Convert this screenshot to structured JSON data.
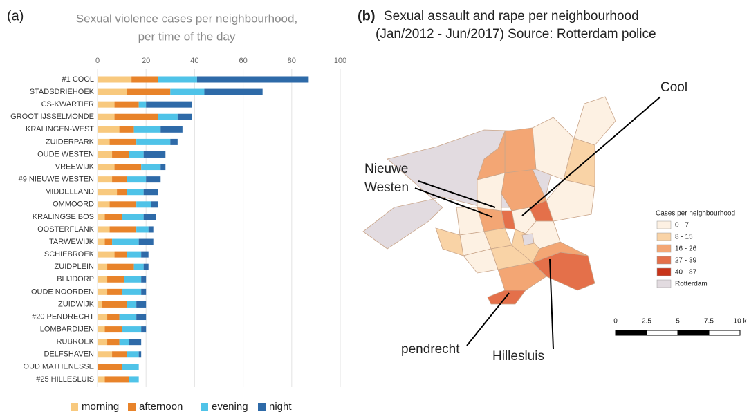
{
  "panels": [
    "(a)",
    "(b)"
  ],
  "chart_data": [
    {
      "type": "stacked-bar-horizontal",
      "title": [
        "Sexual violence cases per neighbourhood,",
        "per time of the day"
      ],
      "categories": [
        "#1 COOL",
        "STADSDRIEHOEK",
        "CS-KWARTIER",
        "GROOT IJSSELMONDE",
        "KRALINGEN-WEST",
        "ZUIDERPARK",
        "OUDE WESTEN",
        "VREEWIJK",
        "#9 NIEUWE WESTEN",
        "MIDDELLAND",
        "OMMOORD",
        "KRALINGSE BOS",
        "OOSTERFLANK",
        "TARWEWIJK",
        "SCHIEBROEK",
        "ZUIDPLEIN",
        "BLIJDORP",
        "OUDE NOORDEN",
        "ZUIDWIJK",
        "#20 PENDRECHT",
        "LOMBARDIJEN",
        "RUBROEK",
        "DELFSHAVEN",
        "OUD MATHENESSE",
        "#25 HILLESLUIS"
      ],
      "series": [
        {
          "name": "morning",
          "color": "#f8c97e",
          "values": [
            14,
            12,
            7,
            7,
            9,
            5,
            6,
            7,
            6,
            8,
            5,
            3,
            5,
            3,
            7,
            4,
            4,
            4,
            2,
            4,
            3,
            4,
            6,
            0,
            3
          ]
        },
        {
          "name": "afternoon",
          "color": "#e8832a",
          "values": [
            11,
            18,
            10,
            18,
            6,
            11,
            7,
            11,
            6,
            4,
            11,
            7,
            11,
            3,
            5,
            11,
            7,
            6,
            10,
            5,
            7,
            5,
            6,
            10,
            10
          ]
        },
        {
          "name": "evening",
          "color": "#4fc3e8",
          "values": [
            16,
            14,
            3,
            8,
            11,
            14,
            6,
            8,
            8,
            7,
            6,
            9,
            5,
            11,
            6,
            4,
            7,
            8,
            4,
            7,
            8,
            4,
            5,
            7,
            4
          ]
        },
        {
          "name": "night",
          "color": "#2e6aa8",
          "values": [
            46,
            24,
            19,
            6,
            9,
            3,
            9,
            2,
            6,
            6,
            3,
            5,
            2,
            6,
            3,
            2,
            2,
            2,
            4,
            4,
            2,
            5,
            1,
            0,
            0
          ]
        }
      ],
      "xlim": [
        0,
        100
      ],
      "xticks": [
        0,
        20,
        40,
        60,
        80,
        100
      ],
      "grid": true,
      "legend": "bottom"
    },
    {
      "type": "map",
      "title": [
        "Sexual assault and rape per neighbourhood",
        "(Jan/2012 - Jun/2017) Source: Rotterdam police"
      ],
      "legend_title": "Cases per neighbourhood",
      "legend": [
        {
          "label": "0 - 7",
          "color": "#fdf1e3"
        },
        {
          "label": "8 - 15",
          "color": "#f9d3a6"
        },
        {
          "label": "16 - 26",
          "color": "#f3a674"
        },
        {
          "label": "27 - 39",
          "color": "#e4704a"
        },
        {
          "label": "40 - 87",
          "color": "#c8341a"
        },
        {
          "label": "Rotterdam",
          "color": "#e2dbe0"
        }
      ],
      "annotations": [
        {
          "text": [
            "Cool"
          ]
        },
        {
          "text": [
            "Nieuwe",
            "Westen"
          ]
        },
        {
          "text": [
            "pendrecht"
          ]
        },
        {
          "text": [
            "Hillesluis"
          ]
        }
      ],
      "scale": [
        "0",
        "2.5",
        "5",
        "7.5",
        "10 k"
      ]
    }
  ]
}
